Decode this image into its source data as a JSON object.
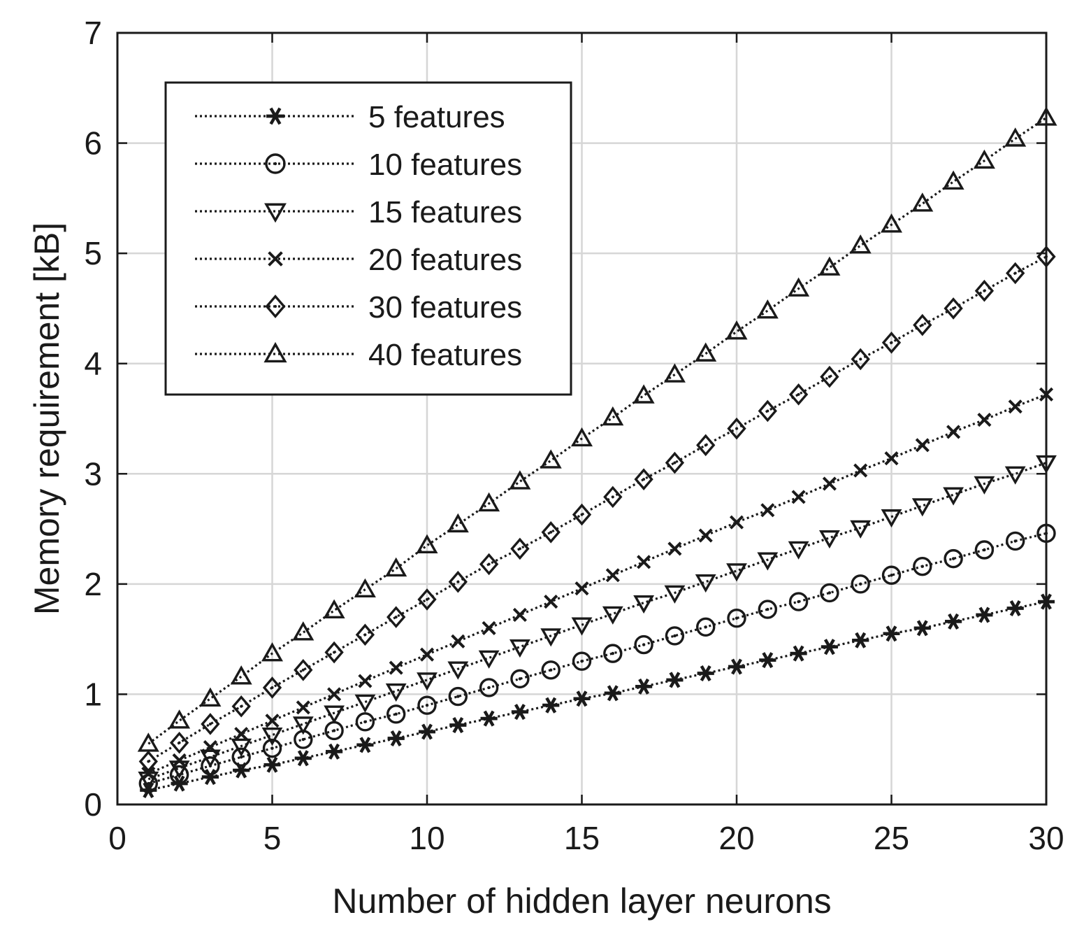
{
  "chart_data": {
    "type": "line",
    "title": "",
    "xlabel": "Number of hidden layer neurons",
    "ylabel": "Memory requirement [kB]",
    "xlim": [
      0,
      30
    ],
    "ylim": [
      0,
      7
    ],
    "xticks": [
      0,
      5,
      10,
      15,
      20,
      25,
      30
    ],
    "yticks": [
      0,
      1,
      2,
      3,
      4,
      5,
      6,
      7
    ],
    "grid": true,
    "legend_position": "top-left",
    "line_style": "dotted",
    "color": "#1a1a1a",
    "x": [
      1,
      2,
      3,
      4,
      5,
      6,
      7,
      8,
      9,
      10,
      11,
      12,
      13,
      14,
      15,
      16,
      17,
      18,
      19,
      20,
      21,
      22,
      23,
      24,
      25,
      26,
      27,
      28,
      29,
      30
    ],
    "series": [
      {
        "name": "5 features",
        "marker": "asterisk",
        "values": [
          0.13,
          0.19,
          0.25,
          0.31,
          0.36,
          0.42,
          0.48,
          0.54,
          0.6,
          0.66,
          0.72,
          0.78,
          0.84,
          0.9,
          0.96,
          1.01,
          1.07,
          1.13,
          1.19,
          1.25,
          1.31,
          1.37,
          1.43,
          1.49,
          1.55,
          1.6,
          1.66,
          1.72,
          1.78,
          1.84
        ]
      },
      {
        "name": "10 features",
        "marker": "circle",
        "values": [
          0.19,
          0.27,
          0.35,
          0.43,
          0.51,
          0.59,
          0.67,
          0.75,
          0.82,
          0.9,
          0.98,
          1.06,
          1.14,
          1.22,
          1.3,
          1.37,
          1.45,
          1.53,
          1.61,
          1.69,
          1.77,
          1.84,
          1.92,
          2.0,
          2.08,
          2.16,
          2.23,
          2.31,
          2.39,
          2.46
        ]
      },
      {
        "name": "15 features",
        "marker": "triangle-down",
        "values": [
          0.23,
          0.33,
          0.43,
          0.53,
          0.63,
          0.73,
          0.83,
          0.93,
          1.03,
          1.13,
          1.23,
          1.33,
          1.43,
          1.53,
          1.63,
          1.73,
          1.83,
          1.92,
          2.02,
          2.12,
          2.22,
          2.32,
          2.42,
          2.51,
          2.61,
          2.71,
          2.81,
          2.91,
          3.0,
          3.1
        ]
      },
      {
        "name": "20 features",
        "marker": "x",
        "values": [
          0.28,
          0.4,
          0.52,
          0.64,
          0.76,
          0.88,
          1.0,
          1.12,
          1.24,
          1.36,
          1.48,
          1.6,
          1.72,
          1.84,
          1.96,
          2.08,
          2.2,
          2.32,
          2.44,
          2.56,
          2.67,
          2.79,
          2.91,
          3.03,
          3.14,
          3.26,
          3.38,
          3.49,
          3.61,
          3.72
        ]
      },
      {
        "name": "30 features",
        "marker": "diamond",
        "values": [
          0.39,
          0.56,
          0.73,
          0.89,
          1.06,
          1.22,
          1.38,
          1.54,
          1.7,
          1.86,
          2.02,
          2.18,
          2.32,
          2.47,
          2.63,
          2.79,
          2.95,
          3.1,
          3.26,
          3.41,
          3.57,
          3.72,
          3.88,
          4.04,
          4.19,
          4.35,
          4.5,
          4.66,
          4.82,
          4.97
        ]
      },
      {
        "name": "40 features",
        "marker": "triangle-up",
        "values": [
          0.55,
          0.76,
          0.96,
          1.16,
          1.37,
          1.56,
          1.76,
          1.95,
          2.14,
          2.35,
          2.54,
          2.73,
          2.93,
          3.12,
          3.32,
          3.51,
          3.71,
          3.9,
          4.09,
          4.29,
          4.48,
          4.68,
          4.87,
          5.07,
          5.26,
          5.45,
          5.65,
          5.84,
          6.04,
          6.23
        ]
      }
    ]
  }
}
